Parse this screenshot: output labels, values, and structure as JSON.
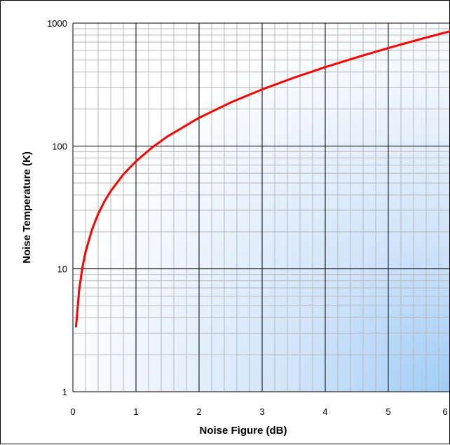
{
  "chart_data": {
    "type": "line",
    "title": "",
    "xlabel": "Noise Figure (dB)",
    "ylabel": "Noise Temperature (K)",
    "xlim": [
      0,
      6
    ],
    "ylim": [
      1,
      1000
    ],
    "yscale": "log",
    "grid": true,
    "legend": "none",
    "x_ticks": [
      "0",
      "1",
      "2",
      "3",
      "4",
      "5",
      "6"
    ],
    "y_ticks": [
      "1",
      "10",
      "100",
      "1000"
    ],
    "series": [
      {
        "color": "#ff0000",
        "x": [
          0.05,
          0.1,
          0.15,
          0.2,
          0.3,
          0.4,
          0.5,
          0.6,
          0.8,
          1.0,
          1.25,
          1.5,
          2.0,
          2.5,
          3.0,
          3.5,
          4.0,
          4.5,
          5.0,
          5.5,
          6.0
        ],
        "y": [
          3.4,
          6.8,
          10.2,
          13.7,
          20.7,
          28.0,
          35.4,
          43.0,
          58.7,
          75.1,
          96.7,
          119.6,
          169.6,
          225.7,
          288.6,
          359.2,
          438.4,
          527.1,
          626.7,
          738.5,
          864.5
        ]
      }
    ],
    "colors": {
      "grid_major": "#000000",
      "grid_minor": "#b8b8b8",
      "background_light": "#ffffff",
      "background_dark": "#9fcdf6"
    }
  }
}
